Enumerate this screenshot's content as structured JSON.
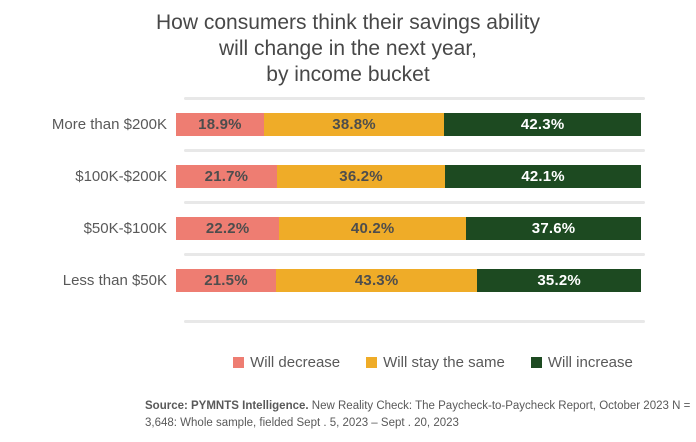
{
  "title": "How consumers think their savings ability\nwill change in the next year,\nby income bucket",
  "chart_data": {
    "type": "bar",
    "orientation": "horizontal",
    "stacked": true,
    "unit": "%",
    "title": "How consumers think their savings ability will change in the next year, by income bucket",
    "categories": [
      "More than $200K",
      "$100K-$200K",
      "$50K-$100K",
      "Less than $50K"
    ],
    "series": [
      {
        "name": "Will decrease",
        "color": "#ee7d72",
        "label_color": "#4d4d4d",
        "values": [
          18.9,
          21.7,
          22.2,
          21.5
        ]
      },
      {
        "name": "Will stay the same",
        "color": "#efac28",
        "label_color": "#4d4d4d",
        "values": [
          38.8,
          36.2,
          40.2,
          43.3
        ]
      },
      {
        "name": "Will increase",
        "color": "#1d4a21",
        "label_color": "#ffffff",
        "values": [
          42.3,
          42.1,
          37.6,
          35.2
        ]
      }
    ],
    "xlim": [
      0,
      100
    ],
    "value_labels": "inside-center",
    "legend_position": "bottom",
    "grid": "row-separators",
    "grid_color": "#e8e8e8"
  },
  "footer": {
    "source_label": "Source: PYMNTS Intelligence.",
    "source_text": " New Reality Check: The Paycheck-to-Paycheck Report, October 2023 N = 3,648: Whole sample, fielded Sept . 5, 2023 – Sept . 20, 2023"
  }
}
